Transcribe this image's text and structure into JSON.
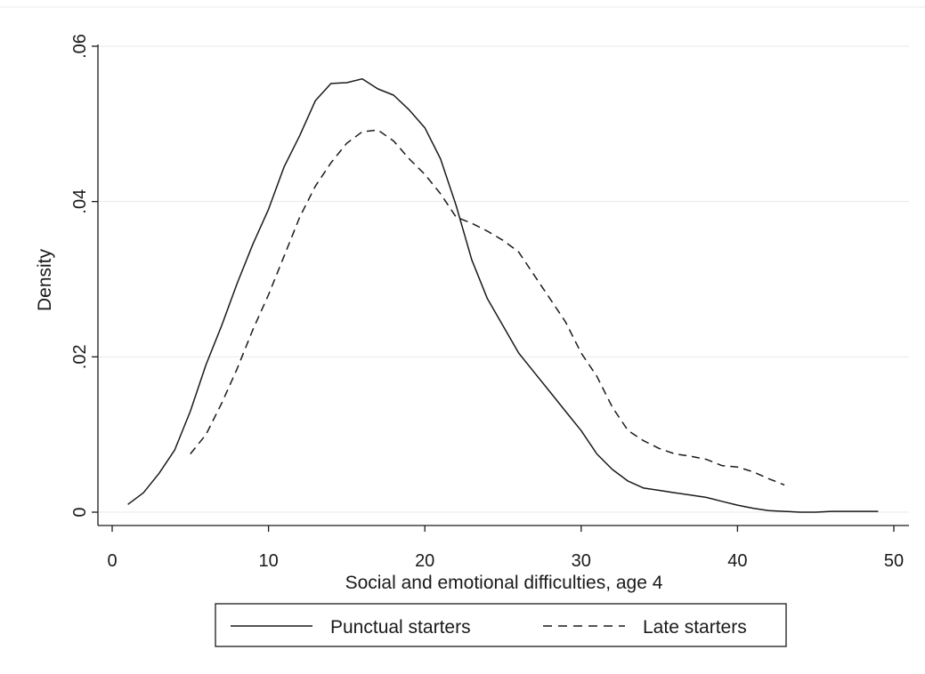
{
  "chart_data": {
    "type": "line",
    "title": "",
    "xlabel": "Social and emotional difficulties, age 4",
    "ylabel": "Density",
    "xlim": [
      0,
      50
    ],
    "ylim": [
      0,
      0.06
    ],
    "x_ticks": [
      0,
      10,
      20,
      30,
      40,
      50
    ],
    "x_tick_labels": [
      "0",
      "10",
      "20",
      "30",
      "40",
      "50"
    ],
    "y_ticks": [
      0,
      0.02,
      0.04,
      0.06
    ],
    "y_tick_labels": [
      "0",
      ".02",
      ".04",
      ".06"
    ],
    "grid": "horizontal",
    "legend_position": "bottom",
    "series": [
      {
        "name": "Punctual starters",
        "style": "solid",
        "color": "#1a1a1a",
        "x": [
          1,
          2,
          3,
          4,
          5,
          6,
          7,
          8,
          9,
          10,
          11,
          12,
          13,
          14,
          15,
          16,
          17,
          18,
          19,
          20,
          21,
          22,
          23,
          24,
          25,
          26,
          27,
          28,
          29,
          30,
          31,
          32,
          33,
          34,
          35,
          36,
          37,
          38,
          39,
          40,
          41,
          42,
          43,
          44,
          45,
          46,
          47,
          48,
          49
        ],
        "y": [
          0.001,
          0.0025,
          0.005,
          0.008,
          0.013,
          0.019,
          0.024,
          0.0295,
          0.0345,
          0.039,
          0.0445,
          0.0485,
          0.053,
          0.0552,
          0.0553,
          0.0558,
          0.0545,
          0.0537,
          0.0518,
          0.0495,
          0.0455,
          0.0395,
          0.0325,
          0.0275,
          0.024,
          0.0205,
          0.018,
          0.0155,
          0.013,
          0.0105,
          0.0075,
          0.0055,
          0.004,
          0.0031,
          0.0028,
          0.0025,
          0.0022,
          0.0019,
          0.0014,
          0.0009,
          0.0005,
          0.0002,
          0.0001,
          0.0,
          0.0,
          0.0001,
          0.0001,
          0.0001,
          0.0001
        ]
      },
      {
        "name": "Late starters",
        "style": "dashed",
        "color": "#1a1a1a",
        "x": [
          5,
          6,
          7,
          8,
          9,
          10,
          11,
          12,
          13,
          14,
          15,
          16,
          17,
          18,
          19,
          20,
          21,
          22,
          23,
          24,
          25,
          26,
          27,
          28,
          29,
          30,
          31,
          32,
          33,
          34,
          35,
          36,
          37,
          38,
          39,
          40,
          41,
          42,
          43
        ],
        "y": [
          0.0075,
          0.01,
          0.014,
          0.0185,
          0.0235,
          0.028,
          0.033,
          0.038,
          0.042,
          0.045,
          0.0475,
          0.049,
          0.0492,
          0.0478,
          0.0455,
          0.0435,
          0.041,
          0.038,
          0.0372,
          0.0362,
          0.035,
          0.0335,
          0.0305,
          0.0275,
          0.0245,
          0.0205,
          0.0175,
          0.0135,
          0.0105,
          0.0092,
          0.0082,
          0.0075,
          0.0072,
          0.0068,
          0.006,
          0.0058,
          0.0052,
          0.0043,
          0.0035
        ]
      }
    ]
  }
}
